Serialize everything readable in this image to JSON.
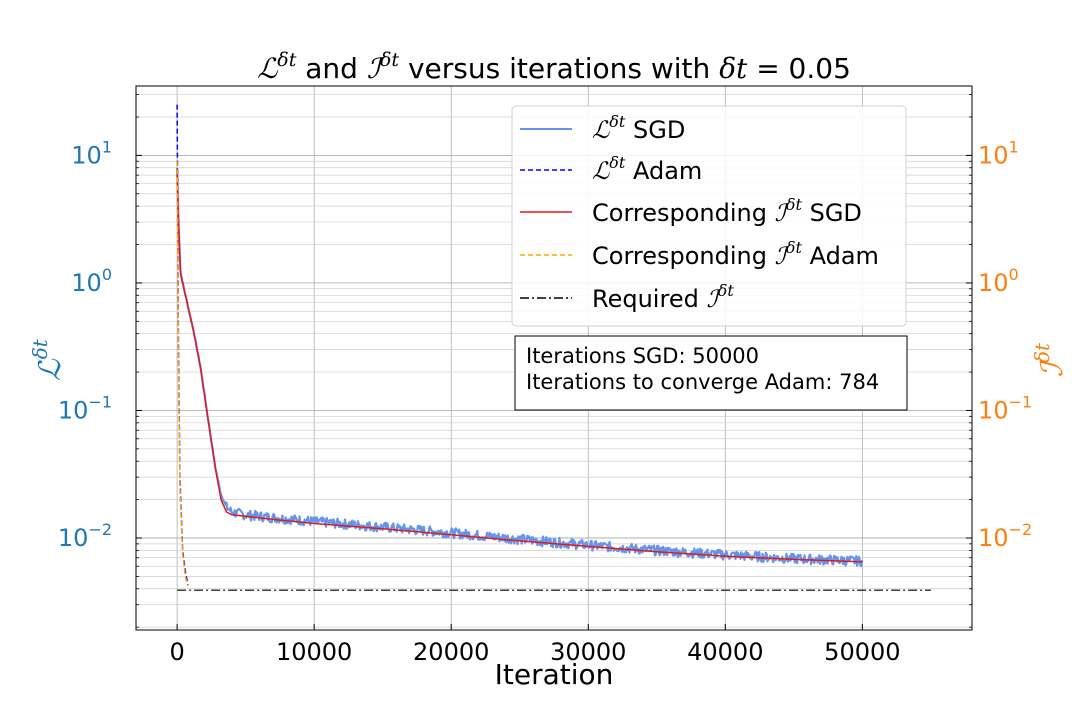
{
  "chart_data": {
    "type": "line",
    "title": {
      "loss_symbol": "ℒ",
      "integral_symbol": "ℐ",
      "superscript": "δt",
      "and_text": " and ",
      "versus_text": " versus iterations with ",
      "delta_symbol": "δt",
      "equals_value": " = 0.05"
    },
    "xlabel": "Iteration",
    "ylabel_left": {
      "symbol": "ℒ",
      "superscript": "δt",
      "color": "#1f77b4"
    },
    "ylabel_right": {
      "symbol": "ℐ",
      "superscript": "δt",
      "color": "#ff7f0e"
    },
    "xlim": [
      -3000,
      58000
    ],
    "ylim": [
      0.0019,
      35
    ],
    "yscale": "log",
    "x_ticks": [
      0,
      10000,
      20000,
      30000,
      40000,
      50000
    ],
    "x_tick_labels": [
      "0",
      "10000",
      "20000",
      "30000",
      "40000",
      "50000"
    ],
    "y_ticks_left": [
      {
        "value": 10,
        "base": "10",
        "exp": "1"
      },
      {
        "value": 1,
        "base": "10",
        "exp": "0"
      },
      {
        "value": 0.1,
        "base": "10",
        "exp": "−1"
      },
      {
        "value": 0.01,
        "base": "10",
        "exp": "−2"
      }
    ],
    "y_ticks_right": [
      {
        "value": 10,
        "base": "10",
        "exp": "1"
      },
      {
        "value": 1,
        "base": "10",
        "exp": "0"
      },
      {
        "value": 0.1,
        "base": "10",
        "exp": "−1"
      },
      {
        "value": 0.01,
        "base": "10",
        "exp": "−2"
      }
    ],
    "grid": true,
    "legend_position": "top-right",
    "series": [
      {
        "name": "ℒ^δt SGD",
        "legend_symbol": "ℒ",
        "legend_sup": "δt",
        "legend_text": " SGD",
        "color": "#6495ed",
        "style": "solid",
        "width": 1.5,
        "band": true,
        "x": [
          0,
          100,
          250,
          500,
          800,
          1200,
          1700,
          2300,
          2800,
          3200,
          3600,
          4000,
          5000,
          7000,
          10000,
          15000,
          20000,
          25000,
          30000,
          35000,
          40000,
          45000,
          50000
        ],
        "y": [
          8.0,
          3.0,
          1.2,
          0.9,
          0.65,
          0.42,
          0.22,
          0.08,
          0.035,
          0.022,
          0.0175,
          0.016,
          0.0152,
          0.0145,
          0.0135,
          0.0122,
          0.011,
          0.0098,
          0.0088,
          0.008,
          0.0074,
          0.0069,
          0.0066
        ]
      },
      {
        "name": "ℒ^δt Adam",
        "legend_symbol": "ℒ",
        "legend_sup": "δt",
        "legend_text": " Adam",
        "color": "#0000ff",
        "style": "dashed",
        "width": 1.5,
        "x": [
          0,
          20,
          50,
          100,
          200,
          400,
          600,
          784
        ],
        "y": [
          25,
          10,
          2.0,
          0.3,
          0.03,
          0.008,
          0.0055,
          0.0043
        ]
      },
      {
        "name": "Corresponding ℐ^δt SGD",
        "legend_prefix": "Corresponding ",
        "legend_symbol": "ℐ",
        "legend_sup": "δt",
        "legend_text": " SGD",
        "color": "#e31a1c",
        "style": "solid",
        "width": 1.5,
        "x": [
          0,
          100,
          250,
          500,
          800,
          1200,
          1700,
          2300,
          2800,
          3200,
          3600,
          4000,
          5000,
          7000,
          10000,
          15000,
          20000,
          25000,
          30000,
          35000,
          40000,
          45000,
          50000
        ],
        "y": [
          7.5,
          3.0,
          1.2,
          0.9,
          0.65,
          0.42,
          0.22,
          0.08,
          0.035,
          0.02,
          0.016,
          0.0152,
          0.0148,
          0.014,
          0.013,
          0.0118,
          0.0106,
          0.0095,
          0.0086,
          0.0078,
          0.0072,
          0.0068,
          0.0065
        ]
      },
      {
        "name": "Corresponding ℐ^δt Adam",
        "legend_prefix": "Corresponding ",
        "legend_symbol": "ℐ",
        "legend_sup": "δt",
        "legend_text": " Adam",
        "color": "#ffa500",
        "style": "dashed",
        "width": 1.5,
        "x": [
          0,
          20,
          50,
          100,
          200,
          400,
          600,
          784
        ],
        "y": [
          9,
          5,
          1.5,
          0.2,
          0.025,
          0.0075,
          0.005,
          0.0042
        ]
      },
      {
        "name": "Required ℐ^δt",
        "legend_prefix": "Required ",
        "legend_symbol": "ℐ",
        "legend_sup": "δt",
        "legend_text": "",
        "color": "#000000",
        "style": "dashdot",
        "width": 1.2,
        "x": [
          0,
          55000
        ],
        "y": [
          0.0039,
          0.0039
        ]
      }
    ],
    "annotation": {
      "lines": [
        "Iterations SGD: 50000",
        "Iterations to converge Adam: 784"
      ]
    }
  }
}
